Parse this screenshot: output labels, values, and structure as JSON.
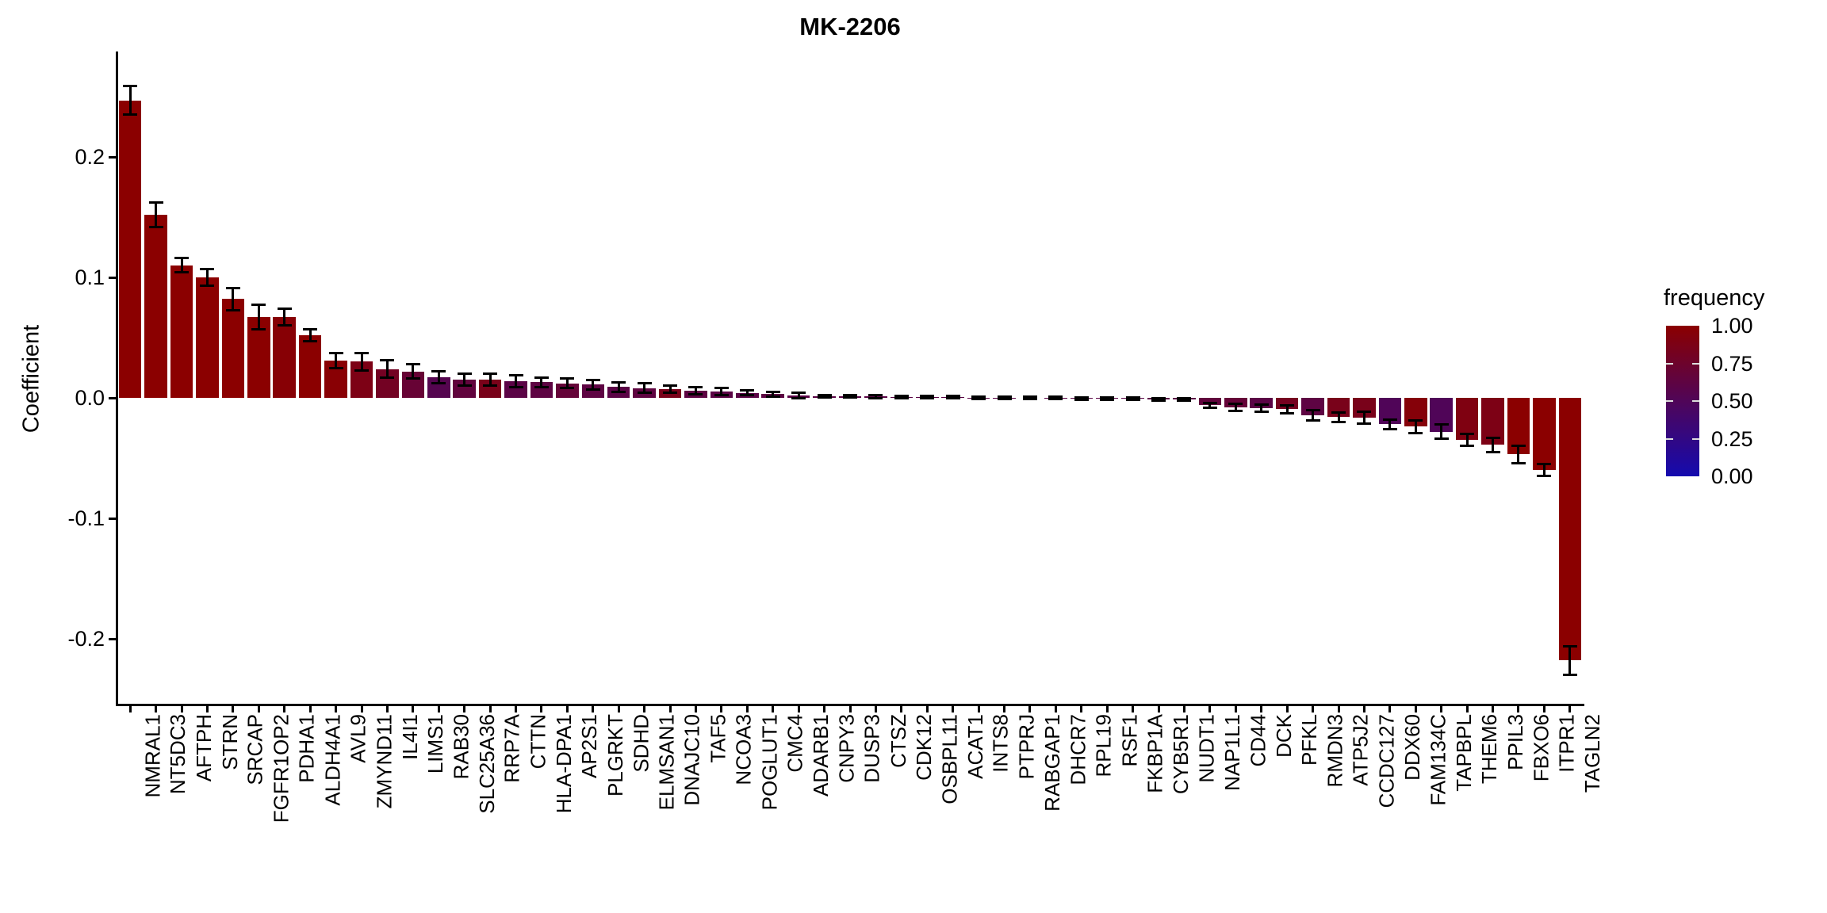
{
  "title": "MK-2206",
  "y_axis": {
    "label": "Coefficient",
    "tick_labels": [
      "0.2",
      "0.1",
      "0.0",
      "-0.1",
      "-0.2"
    ],
    "tick_values": [
      0.2,
      0.1,
      0.0,
      -0.1,
      -0.2
    ]
  },
  "legend": {
    "title": "frequency",
    "labels": [
      "1.00",
      "0.75",
      "0.50",
      "0.25",
      "0.00"
    ],
    "values": [
      1.0,
      0.75,
      0.5,
      0.25,
      0.0
    ],
    "high_color": "#8B0000",
    "low_color": "#140AAF"
  },
  "chart_data": {
    "type": "bar",
    "title": "MK-2206",
    "xlabel": "",
    "ylabel": "Coefficient",
    "ylim": [
      -0.254,
      0.286
    ],
    "grid": false,
    "legend_position": "right",
    "legend_title": "frequency",
    "color_scale": {
      "high": "#8B0000",
      "low": "#140AAF",
      "domain": [
        0,
        1
      ]
    },
    "categories": [
      "NMRAL1",
      "NT5DC3",
      "AFTPH",
      "STRN",
      "SRCAP",
      "FGFR1OP2",
      "PDHA1",
      "ALDH4A1",
      "AVL9",
      "ZMYND11",
      "IL4I1",
      "LIMS1",
      "RAB30",
      "SLC25A36",
      "RRP7A",
      "CTTN",
      "HLA-DPA1",
      "AP2S1",
      "PLGRKT",
      "SDHD",
      "ELMSAN1",
      "DNAJC10",
      "TAF5",
      "NCOA3",
      "POGLUT1",
      "CMC4",
      "ADARB1",
      "CNPY3",
      "DUSP3",
      "CTSZ",
      "CDK12",
      "OSBPL11",
      "ACAT1",
      "INTS8",
      "PTPRJ",
      "RABGAP1",
      "DHCR7",
      "RPL19",
      "RSF1",
      "FKBP1A",
      "CYB5R1",
      "NUDT1",
      "NAP1L1",
      "CD44",
      "DCK",
      "PFKL",
      "RMDN3",
      "ATP5J2",
      "CCDC127",
      "DDX60",
      "FAM134C",
      "TAPBPL",
      "THEM6",
      "PPIL3",
      "FBXO6",
      "ITPR1",
      "TAGLN2"
    ],
    "values": [
      0.247,
      0.152,
      0.11,
      0.1,
      0.082,
      0.067,
      0.067,
      0.052,
      0.031,
      0.03,
      0.024,
      0.022,
      0.017,
      0.015,
      0.015,
      0.014,
      0.013,
      0.012,
      0.011,
      0.009,
      0.008,
      0.007,
      0.006,
      0.005,
      0.004,
      0.003,
      0.002,
      0.0015,
      0.0012,
      0.001,
      0.0008,
      0.0006,
      0.0004,
      0.0003,
      0.0002,
      0.0,
      -0.0002,
      -0.0004,
      -0.0006,
      -0.0008,
      -0.001,
      -0.0015,
      -0.006,
      -0.008,
      -0.0085,
      -0.0095,
      -0.0145,
      -0.016,
      -0.0165,
      -0.022,
      -0.024,
      -0.028,
      -0.035,
      -0.039,
      -0.047,
      -0.06,
      -0.218
    ],
    "errors": [
      0.012,
      0.01,
      0.006,
      0.007,
      0.009,
      0.01,
      0.007,
      0.005,
      0.006,
      0.007,
      0.007,
      0.006,
      0.005,
      0.005,
      0.005,
      0.005,
      0.004,
      0.004,
      0.004,
      0.004,
      0.004,
      0.003,
      0.003,
      0.003,
      0.002,
      0.002,
      0.002,
      0.001,
      0.001,
      0.001,
      0.001,
      0.001,
      0.001,
      0.001,
      0.001,
      0.001,
      0.001,
      0.001,
      0.001,
      0.001,
      0.001,
      0.001,
      0.002,
      0.003,
      0.003,
      0.003,
      0.004,
      0.004,
      0.005,
      0.004,
      0.005,
      0.006,
      0.005,
      0.006,
      0.007,
      0.005,
      0.012
    ],
    "frequencies": [
      1,
      1,
      1,
      1,
      1,
      1,
      0.97,
      1,
      0.98,
      0.88,
      0.8,
      0.7,
      0.55,
      0.65,
      0.85,
      0.6,
      0.62,
      0.68,
      0.62,
      0.6,
      0.63,
      0.85,
      0.62,
      0.6,
      0.6,
      0.62,
      0.6,
      0.6,
      0.6,
      0.6,
      0.6,
      0.6,
      0.6,
      0.6,
      0.6,
      0.6,
      0.6,
      0.6,
      0.6,
      0.6,
      0.6,
      0.6,
      0.65,
      0.68,
      0.6,
      0.82,
      0.62,
      0.85,
      0.85,
      0.5,
      0.95,
      0.5,
      0.9,
      0.88,
      1,
      1,
      1
    ]
  }
}
